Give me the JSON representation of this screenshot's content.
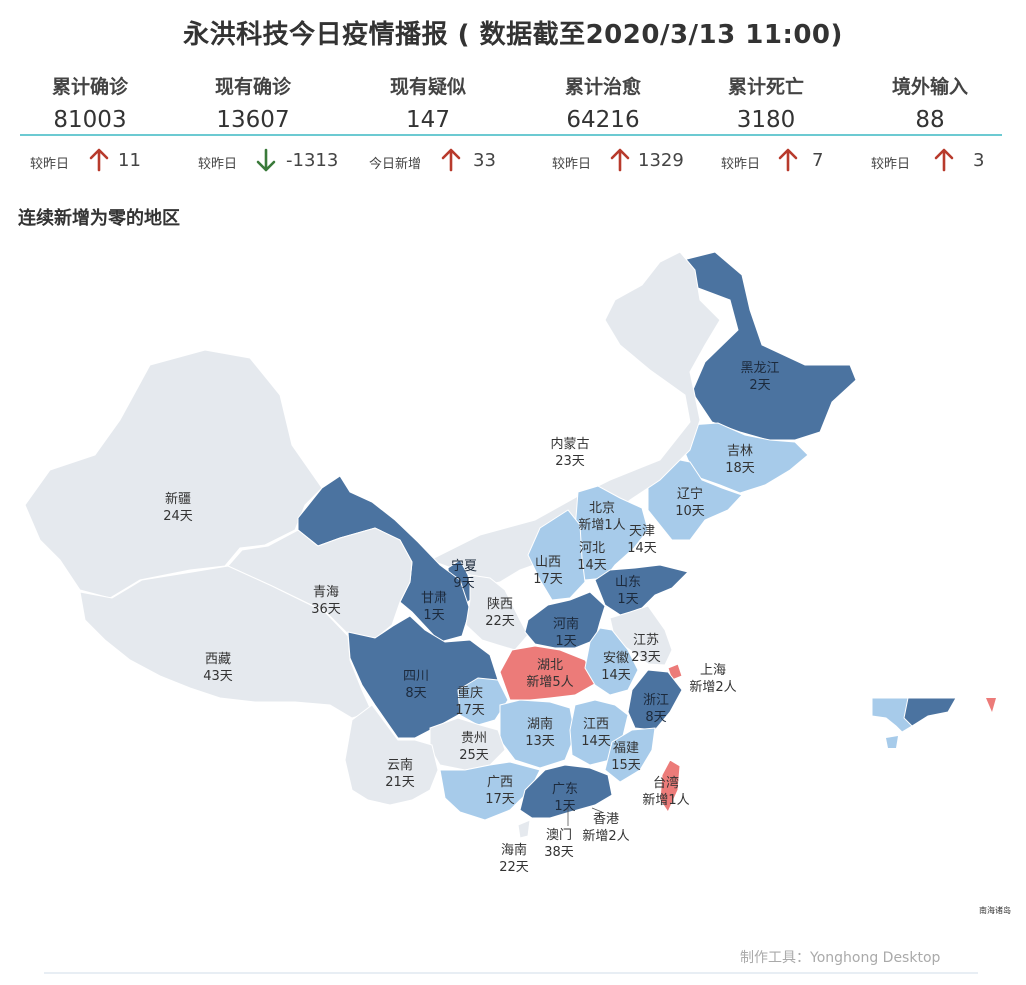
{
  "title": "永洪科技今日疫情播报 ( 数据截至2020/3/13 11:00)",
  "stats": [
    {
      "label": "累计确诊",
      "value": "81003",
      "delta_label": "较昨日",
      "delta_dir": "up",
      "delta": "11"
    },
    {
      "label": "现有确诊",
      "value": "13607",
      "delta_label": "较昨日",
      "delta_dir": "down",
      "delta": "-1313"
    },
    {
      "label": "现有疑似",
      "value": "147",
      "delta_label": "今日新增",
      "delta_dir": "up",
      "delta": "33"
    },
    {
      "label": "累计治愈",
      "value": "64216",
      "delta_label": "较昨日",
      "delta_dir": "up",
      "delta": "1329"
    },
    {
      "label": "累计死亡",
      "value": "3180",
      "delta_label": "较昨日",
      "delta_dir": "up",
      "delta": "7"
    },
    {
      "label": "境外输入",
      "value": "88",
      "delta_label": "较昨日",
      "delta_dir": "up",
      "delta": "3"
    }
  ],
  "section_title": "连续新增为零的地区",
  "colors": {
    "up_arrow": "#b83a2c",
    "down_arrow": "#3a7a3a",
    "divider": "#6ccad2",
    "new_cases": "#ec7b79",
    "short": "#4b73a0",
    "medium": "#a7cbea",
    "long": "#e5e9ee"
  },
  "regions": [
    {
      "name": "黑龙江",
      "status": "2天"
    },
    {
      "name": "吉林",
      "status": "18天"
    },
    {
      "name": "辽宁",
      "status": "10天"
    },
    {
      "name": "内蒙古",
      "status": "23天"
    },
    {
      "name": "新疆",
      "status": "24天"
    },
    {
      "name": "北京",
      "status": "新增1人"
    },
    {
      "name": "天津",
      "status": "14天"
    },
    {
      "name": "河北",
      "status": "14天"
    },
    {
      "name": "山西",
      "status": "17天"
    },
    {
      "name": "宁夏",
      "status": "9天"
    },
    {
      "name": "甘肃",
      "status": "1天"
    },
    {
      "name": "青海",
      "status": "36天"
    },
    {
      "name": "陕西",
      "status": "22天"
    },
    {
      "name": "山东",
      "status": "1天"
    },
    {
      "name": "河南",
      "status": "1天"
    },
    {
      "name": "江苏",
      "status": "23天"
    },
    {
      "name": "西藏",
      "status": "43天"
    },
    {
      "name": "湖北",
      "status": "新增5人"
    },
    {
      "name": "安徽",
      "status": "14天"
    },
    {
      "name": "上海",
      "status": "新增2人"
    },
    {
      "name": "四川",
      "status": "8天"
    },
    {
      "name": "重庆",
      "status": "17天"
    },
    {
      "name": "浙江",
      "status": "8天"
    },
    {
      "name": "湖南",
      "status": "13天"
    },
    {
      "name": "江西",
      "status": "14天"
    },
    {
      "name": "贵州",
      "status": "25天"
    },
    {
      "name": "福建",
      "status": "15天"
    },
    {
      "name": "云南",
      "status": "21天"
    },
    {
      "name": "广西",
      "status": "17天"
    },
    {
      "name": "广东",
      "status": "1天"
    },
    {
      "name": "台湾",
      "status": "新增1人"
    },
    {
      "name": "香港",
      "status": "新增2人"
    },
    {
      "name": "澳门",
      "status": "38天"
    },
    {
      "name": "海南",
      "status": "22天"
    }
  ],
  "inset_label": "南海诸岛",
  "footer": "制作工具：Yonghong Desktop"
}
